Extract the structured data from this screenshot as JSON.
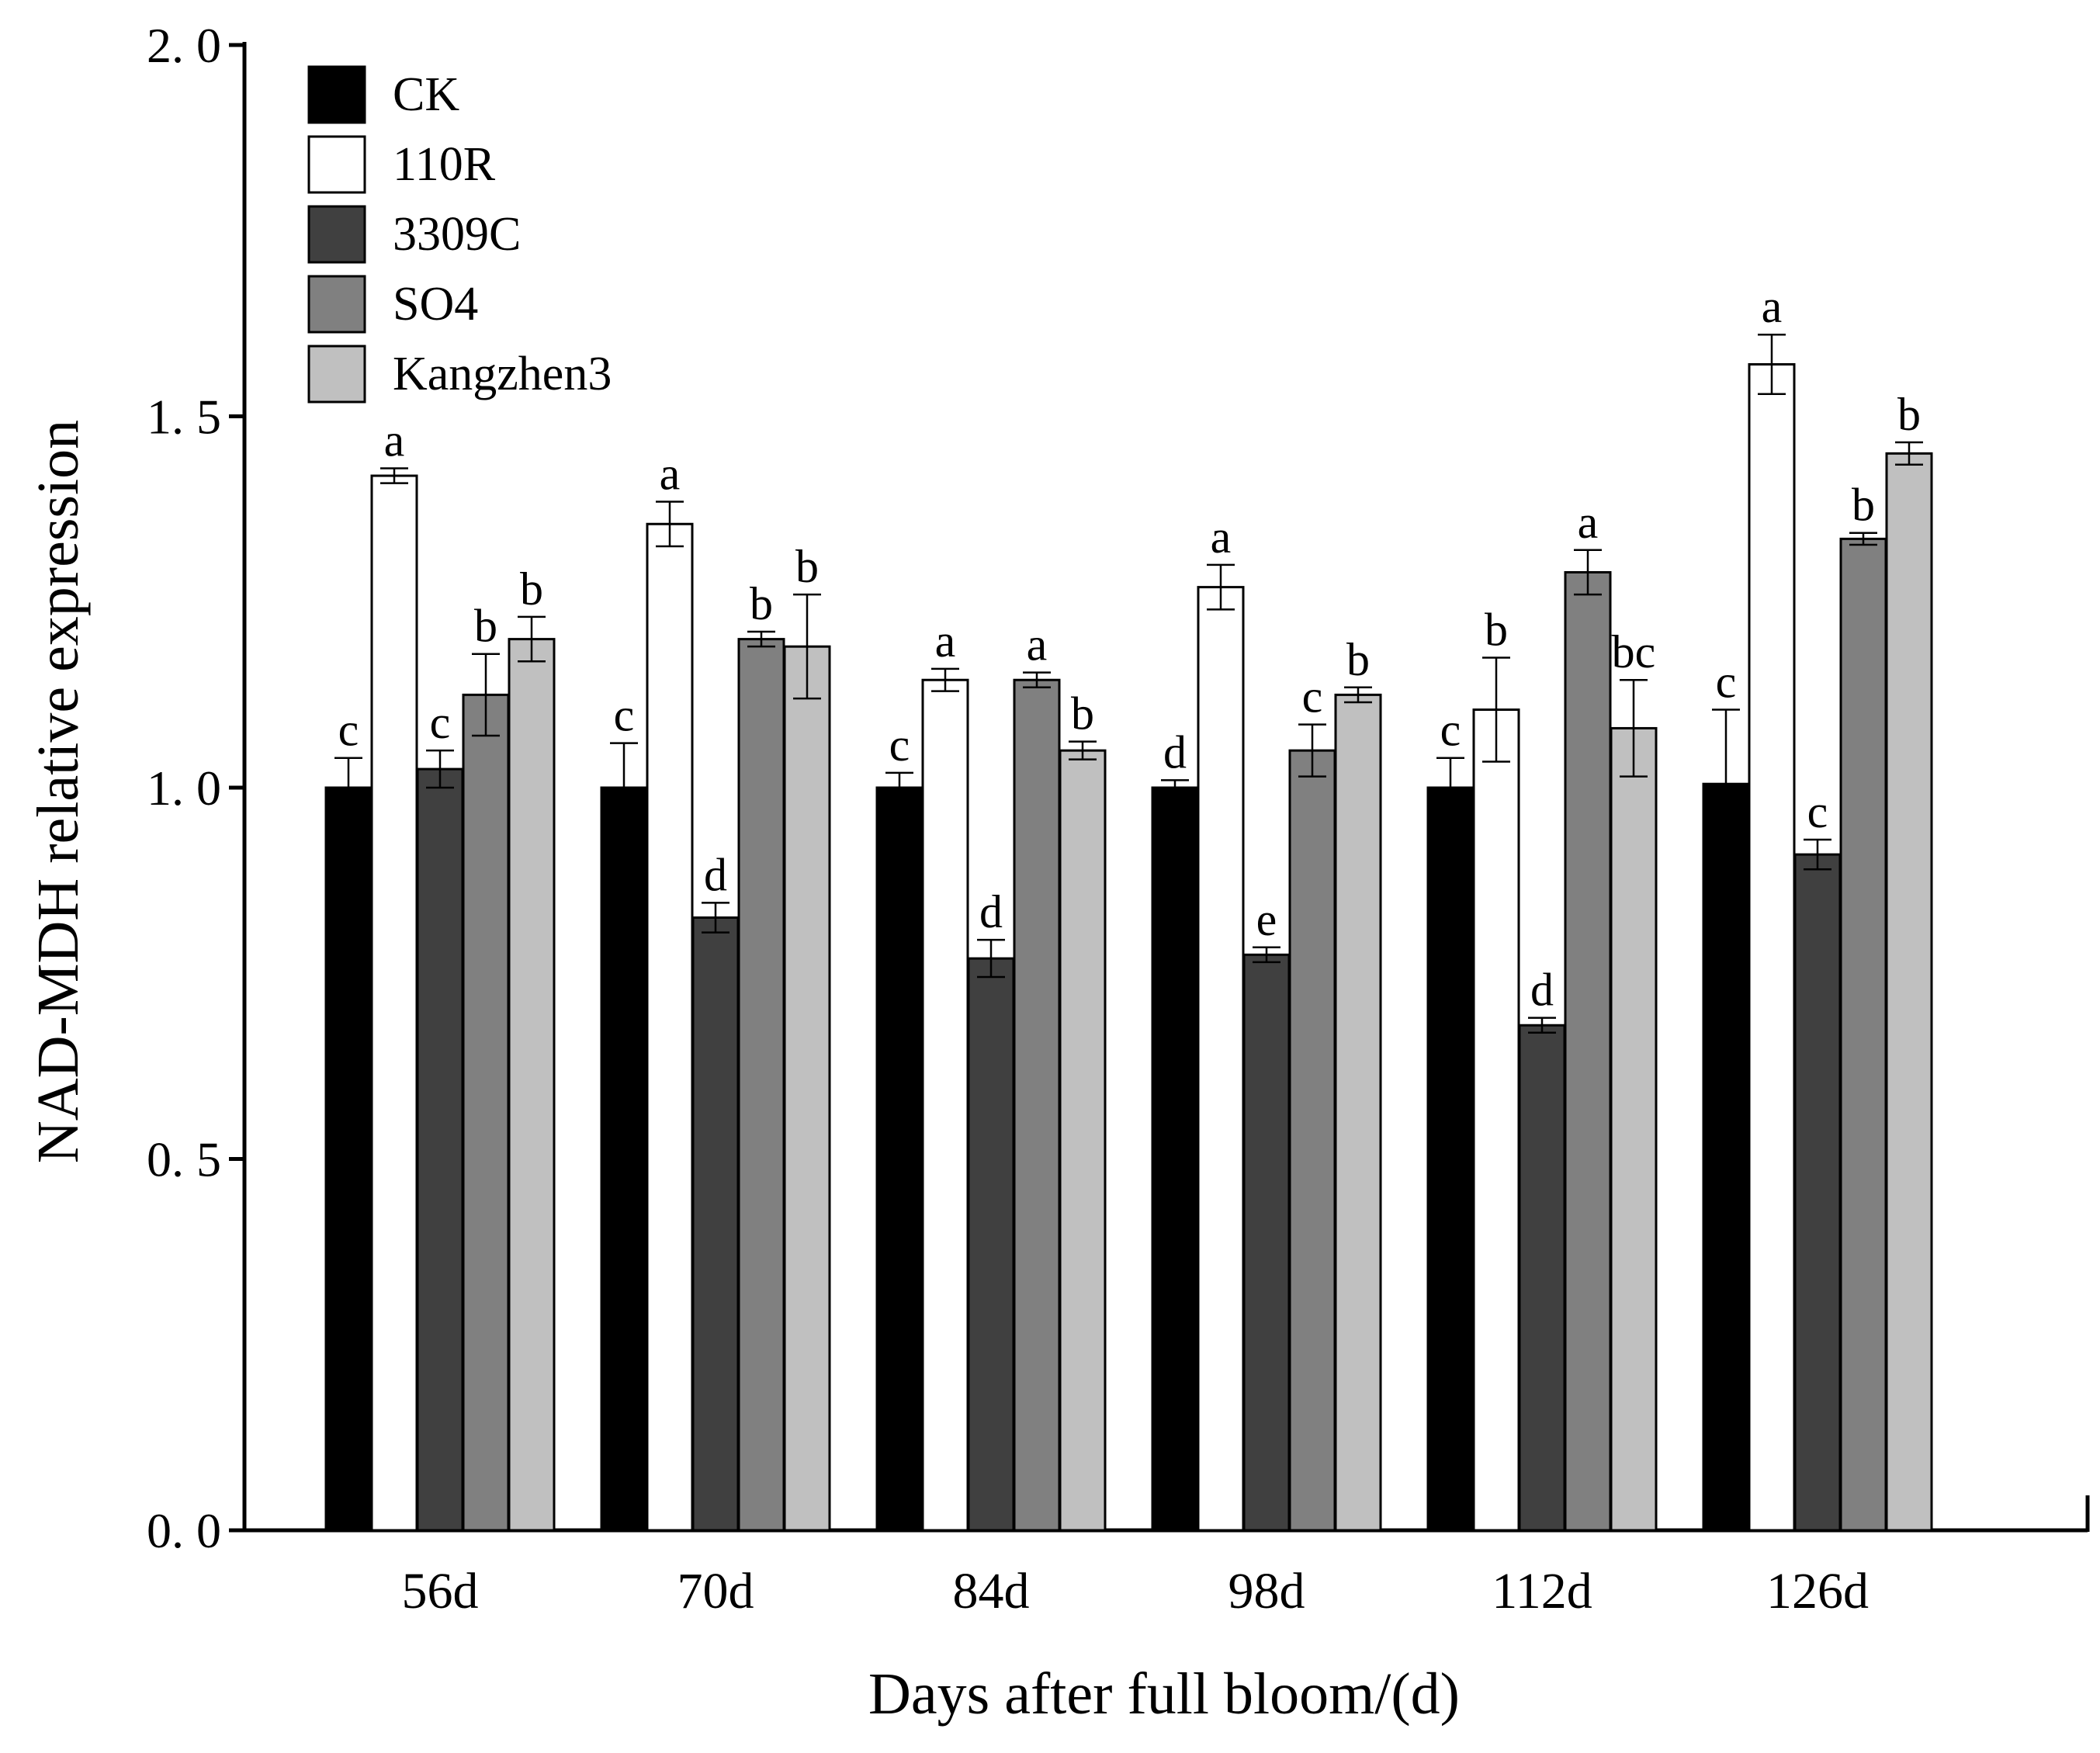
{
  "chart_data": {
    "type": "bar",
    "categories": [
      "56d",
      "70d",
      "84d",
      "98d",
      "112d",
      "126d"
    ],
    "xlabel": "Days after full bloom/(d)",
    "ylabel": "NAD-MDH relative expression",
    "ylim": [
      0,
      2.0
    ],
    "yticks": [
      0.0,
      0.5,
      1.0,
      1.5,
      2.0
    ],
    "ytick_labels": [
      "0. 0",
      "0. 5",
      "1. 0",
      "1. 5",
      "2. 0"
    ],
    "grid": false,
    "legend_position": "top-left",
    "series": [
      {
        "name": "CK",
        "color": "#000000",
        "values": [
          1.0,
          1.0,
          1.0,
          1.0,
          1.0,
          1.005
        ],
        "errors": [
          0.04,
          0.06,
          0.02,
          0.01,
          0.04,
          0.1
        ],
        "letters": [
          "c",
          "c",
          "c",
          "d",
          "c",
          "c"
        ]
      },
      {
        "name": "110R",
        "color": "#ffffff",
        "values": [
          1.42,
          1.355,
          1.145,
          1.27,
          1.105,
          1.57
        ],
        "errors": [
          0.01,
          0.03,
          0.015,
          0.03,
          0.07,
          0.04
        ],
        "letters": [
          "a",
          "a",
          "a",
          "a",
          "b",
          "a"
        ]
      },
      {
        "name": "3309C",
        "color": "#404040",
        "values": [
          1.025,
          0.825,
          0.77,
          0.775,
          0.68,
          0.91
        ],
        "errors": [
          0.025,
          0.02,
          0.025,
          0.01,
          0.01,
          0.02
        ],
        "letters": [
          "c",
          "d",
          "d",
          "e",
          "d",
          "c"
        ]
      },
      {
        "name": "SO4",
        "color": "#808080",
        "values": [
          1.125,
          1.2,
          1.145,
          1.05,
          1.29,
          1.335
        ],
        "errors": [
          0.055,
          0.01,
          0.01,
          0.035,
          0.03,
          0.008
        ],
        "letters": [
          "b",
          "b",
          "a",
          "c",
          "a",
          "b"
        ]
      },
      {
        "name": "Kangzhen3",
        "color": "#c0c0c0",
        "values": [
          1.2,
          1.19,
          1.05,
          1.125,
          1.08,
          1.45
        ],
        "errors": [
          0.03,
          0.07,
          0.012,
          0.01,
          0.065,
          0.015
        ],
        "letters": [
          "b",
          "b",
          "b",
          "b",
          "bc",
          "b"
        ]
      }
    ]
  }
}
